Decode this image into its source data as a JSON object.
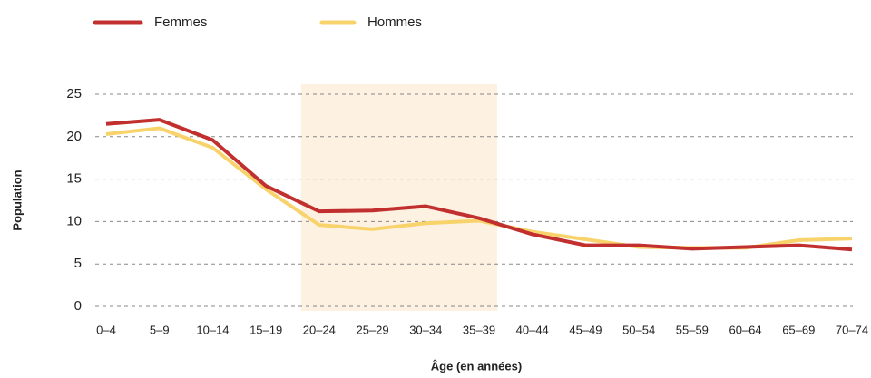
{
  "chart_data": {
    "type": "line",
    "categories": [
      "0–4",
      "5–9",
      "10–14",
      "15–19",
      "20–24",
      "25–29",
      "30–34",
      "35–39",
      "40–44",
      "45–49",
      "50–54",
      "55–59",
      "60–64",
      "65–69",
      "70–74"
    ],
    "series": [
      {
        "name": "Femmes",
        "color": "#c1302e",
        "values": [
          21.5,
          22,
          19.6,
          14.2,
          11.2,
          11.3,
          11.8,
          10.4,
          8.5,
          7.2,
          7.2,
          6.8,
          7,
          7.2,
          6.7
        ]
      },
      {
        "name": "Hommes",
        "color": "#f8d36c",
        "values": [
          20.3,
          21,
          18.7,
          13.8,
          9.6,
          9.1,
          9.8,
          10.1,
          8.8,
          7.9,
          7,
          6.9,
          6.9,
          7.8,
          8
        ]
      }
    ],
    "y_label": "Population",
    "x_label": "Âge (en années)",
    "ylim": [
      0,
      25
    ],
    "yticks": [
      0,
      5,
      10,
      15,
      20,
      25
    ],
    "grid": true
  }
}
